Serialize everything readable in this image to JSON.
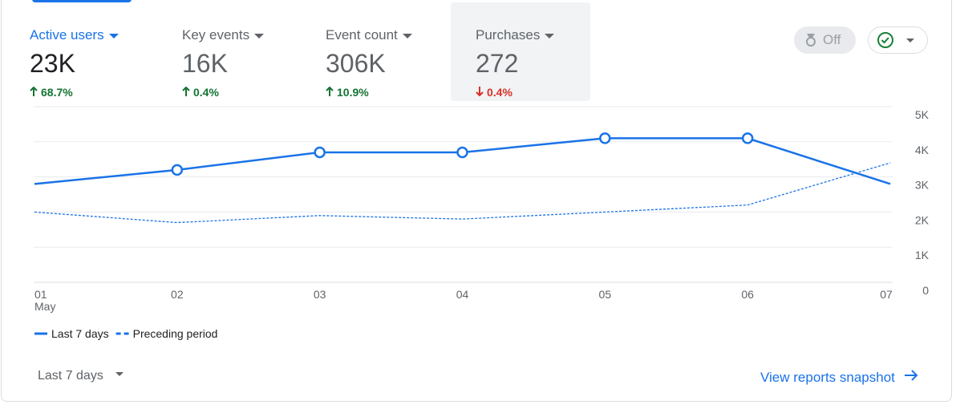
{
  "metrics": [
    {
      "label": "Active users",
      "value": "23K",
      "change": "68.7%",
      "direction": "up",
      "active": true
    },
    {
      "label": "Key events",
      "value": "16K",
      "change": "0.4%",
      "direction": "up"
    },
    {
      "label": "Event count",
      "value": "306K",
      "change": "10.9%",
      "direction": "up"
    },
    {
      "label": "Purchases",
      "value": "272",
      "change": "0.4%",
      "direction": "down",
      "selected": true
    }
  ],
  "badge": "Off",
  "chart_data": {
    "type": "line",
    "x": [
      "01",
      "02",
      "03",
      "04",
      "05",
      "06",
      "07"
    ],
    "x_sublabel": "May",
    "series": [
      {
        "name": "Last 7 days",
        "color": "#1a73e8",
        "style": "solid",
        "values": [
          2800,
          3200,
          3700,
          3700,
          4100,
          4100,
          2800
        ]
      },
      {
        "name": "Preceding period",
        "color": "#1a73e8",
        "style": "dashed",
        "values": [
          2000,
          1700,
          1900,
          1800,
          2000,
          2200,
          3400
        ]
      }
    ],
    "ylim": [
      0,
      5000
    ],
    "yticks": [
      0,
      {
        "value": 1000,
        "label": "1K"
      },
      {
        "value": 2000,
        "label": "2K"
      },
      {
        "value": 3000,
        "label": "3K"
      },
      {
        "value": 4000,
        "label": "4K"
      },
      {
        "value": 5000,
        "label": "5K"
      }
    ],
    "grid": true
  },
  "footer": {
    "range": "Last 7 days",
    "link": "View reports snapshot"
  }
}
